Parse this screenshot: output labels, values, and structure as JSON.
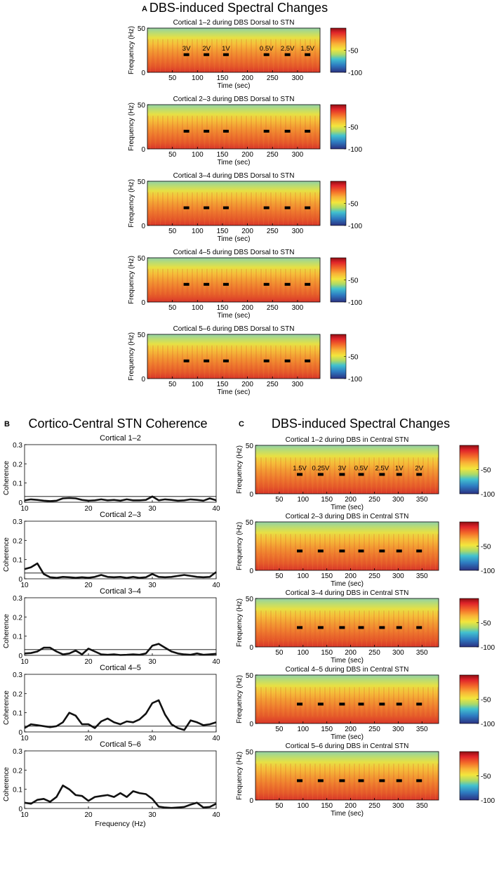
{
  "figure": {
    "panel_a": {
      "letter": "A",
      "title": "DBS-induced Spectral Changes",
      "colorbar_ticks": [
        "-50",
        "-100"
      ],
      "colorbar_colors": [
        "#b8161b",
        "#d82427",
        "#ef5424",
        "#f5892c",
        "#f7b733",
        "#f4e43a",
        "#c8e15a",
        "#6fcf9b",
        "#35b6d9",
        "#2a83c8",
        "#2f4fa8",
        "#2a3585"
      ],
      "ylabel": "Frequency (Hz)",
      "xlabel": "Time (sec)",
      "ytick_labels": [
        "50",
        "0"
      ],
      "xticks": [
        50,
        100,
        150,
        200,
        250,
        300
      ],
      "xlim": [
        0,
        345
      ],
      "ylim": [
        0,
        50
      ],
      "marker_times": [
        78,
        118,
        157,
        238,
        280,
        320
      ],
      "marker_freq": 20,
      "voltage_labels": [
        "3V",
        "2V",
        "1V",
        "0.5V",
        "2.5V",
        "1.5V"
      ],
      "subplots": [
        {
          "title": "Cortical 1–2 during DBS Dorsal to STN",
          "show_labels": true
        },
        {
          "title": "Cortical 2–3 during DBS Dorsal to STN",
          "show_labels": false
        },
        {
          "title": "Cortical 3–4 during DBS Dorsal to STN",
          "show_labels": false
        },
        {
          "title": "Cortical 4–5 during DBS Dorsal to STN",
          "show_labels": false
        },
        {
          "title": "Cortical 5–6 during DBS Dorsal to STN",
          "show_labels": false
        }
      ]
    },
    "panel_b": {
      "letter": "B",
      "title": "Cortico-Central STN Coherence",
      "ylabel": "Coherence",
      "xlabel": "Frequency (Hz)",
      "xticks": [
        10,
        20,
        30,
        40
      ],
      "yticks": [
        0,
        0.1,
        0.2,
        0.3
      ],
      "ytick_labels": [
        "0",
        "0.1",
        "0.2",
        "0.3"
      ],
      "xlim": [
        10,
        40
      ],
      "ylim": [
        0,
        0.3
      ],
      "threshold": 0.03
    },
    "panel_c": {
      "letter": "C",
      "title": "DBS-induced Spectral Changes",
      "colorbar_ticks": [
        "-50",
        "-100"
      ],
      "ylabel": "Frequency (Hz)",
      "xlabel": "Time (sec)",
      "ytick_labels": [
        "50",
        "0"
      ],
      "xticks": [
        50,
        100,
        150,
        200,
        250,
        300,
        350
      ],
      "xlim": [
        0,
        385
      ],
      "ylim": [
        0,
        50
      ],
      "marker_times": [
        93,
        137,
        182,
        222,
        266,
        302,
        344
      ],
      "marker_freq": 20,
      "voltage_labels": [
        "1.5V",
        "0.25V",
        "3V",
        "0.5V",
        "2.5V",
        "1V",
        "2V"
      ],
      "subplots": [
        {
          "title": "Cortical 1–2 during DBS in Central STN",
          "show_labels": true
        },
        {
          "title": "Cortical 2–3 during DBS in Central STN",
          "show_labels": false
        },
        {
          "title": "Cortical 3–4 during DBS in Central STN",
          "show_labels": false
        },
        {
          "title": "Cortical 4–5 during DBS in Central STN",
          "show_labels": false
        },
        {
          "title": "Cortical 5–6 during DBS in Central STN",
          "show_labels": false
        }
      ]
    }
  },
  "chart_data": [
    {
      "type": "line",
      "title": "Cortical 1–2",
      "xlabel": "",
      "ylabel": "Coherence",
      "xlim": [
        10,
        40
      ],
      "ylim": [
        0,
        0.3
      ],
      "x": [
        10,
        11,
        12,
        13,
        14,
        15,
        16,
        17,
        18,
        19,
        20,
        21,
        22,
        23,
        24,
        25,
        26,
        27,
        28,
        29,
        30,
        31,
        32,
        33,
        34,
        35,
        36,
        37,
        38,
        39,
        40
      ],
      "series": [
        {
          "name": "coherence",
          "values": [
            0.01,
            0.015,
            0.012,
            0.008,
            0.006,
            0.008,
            0.02,
            0.022,
            0.02,
            0.012,
            0.008,
            0.01,
            0.015,
            0.01,
            0.012,
            0.008,
            0.015,
            0.01,
            0.01,
            0.012,
            0.03,
            0.01,
            0.015,
            0.012,
            0.008,
            0.01,
            0.015,
            0.012,
            0.008,
            0.02,
            0.01
          ]
        }
      ],
      "threshold": 0.03
    },
    {
      "type": "line",
      "title": "Cortical 2–3",
      "xlabel": "",
      "ylabel": "Coherence",
      "xlim": [
        10,
        40
      ],
      "ylim": [
        0,
        0.3
      ],
      "x": [
        10,
        11,
        12,
        13,
        14,
        15,
        16,
        17,
        18,
        19,
        20,
        21,
        22,
        23,
        24,
        25,
        26,
        27,
        28,
        29,
        30,
        31,
        32,
        33,
        34,
        35,
        36,
        37,
        38,
        39,
        40
      ],
      "series": [
        {
          "name": "coherence",
          "values": [
            0.05,
            0.06,
            0.08,
            0.025,
            0.008,
            0.005,
            0.01,
            0.008,
            0.005,
            0.008,
            0.005,
            0.01,
            0.02,
            0.01,
            0.008,
            0.01,
            0.005,
            0.01,
            0.005,
            0.008,
            0.025,
            0.01,
            0.008,
            0.01,
            0.015,
            0.02,
            0.015,
            0.01,
            0.008,
            0.01,
            0.035
          ]
        }
      ],
      "threshold": 0.03
    },
    {
      "type": "line",
      "title": "Cortical 3–4",
      "xlabel": "",
      "ylabel": "Coherence",
      "xlim": [
        10,
        40
      ],
      "ylim": [
        0,
        0.3
      ],
      "x": [
        10,
        11,
        12,
        13,
        14,
        15,
        16,
        17,
        18,
        19,
        20,
        21,
        22,
        23,
        24,
        25,
        26,
        27,
        28,
        29,
        30,
        31,
        32,
        33,
        34,
        35,
        36,
        37,
        38,
        39,
        40
      ],
      "series": [
        {
          "name": "coherence",
          "values": [
            0.01,
            0.012,
            0.02,
            0.04,
            0.04,
            0.02,
            0.005,
            0.01,
            0.025,
            0.005,
            0.035,
            0.02,
            0.005,
            0.003,
            0.005,
            0.002,
            0.003,
            0.005,
            0.003,
            0.01,
            0.05,
            0.06,
            0.04,
            0.02,
            0.01,
            0.005,
            0.003,
            0.01,
            0.003,
            0.005,
            0.008
          ]
        }
      ],
      "threshold": 0.03
    },
    {
      "type": "line",
      "title": "Cortical 4–5",
      "xlabel": "",
      "ylabel": "Coherence",
      "xlim": [
        10,
        40
      ],
      "ylim": [
        0,
        0.3
      ],
      "x": [
        10,
        11,
        12,
        13,
        14,
        15,
        16,
        17,
        18,
        19,
        20,
        21,
        22,
        23,
        24,
        25,
        26,
        27,
        28,
        29,
        30,
        31,
        32,
        33,
        34,
        35,
        36,
        37,
        38,
        39,
        40
      ],
      "series": [
        {
          "name": "coherence",
          "values": [
            0.02,
            0.04,
            0.035,
            0.03,
            0.025,
            0.03,
            0.05,
            0.1,
            0.085,
            0.04,
            0.04,
            0.02,
            0.055,
            0.07,
            0.05,
            0.04,
            0.055,
            0.05,
            0.065,
            0.095,
            0.15,
            0.165,
            0.09,
            0.04,
            0.02,
            0.01,
            0.06,
            0.05,
            0.035,
            0.04,
            0.05
          ]
        }
      ],
      "threshold": 0.03
    },
    {
      "type": "line",
      "title": "Cortical 5–6",
      "xlabel": "Frequency (Hz)",
      "ylabel": "Coherence",
      "xlim": [
        10,
        40
      ],
      "ylim": [
        0,
        0.3
      ],
      "x": [
        10,
        11,
        12,
        13,
        14,
        15,
        16,
        17,
        18,
        19,
        20,
        21,
        22,
        23,
        24,
        25,
        26,
        27,
        28,
        29,
        30,
        31,
        32,
        33,
        34,
        35,
        36,
        37,
        38,
        39,
        40
      ],
      "series": [
        {
          "name": "coherence",
          "values": [
            0.03,
            0.025,
            0.045,
            0.05,
            0.035,
            0.06,
            0.12,
            0.1,
            0.07,
            0.065,
            0.04,
            0.06,
            0.065,
            0.07,
            0.06,
            0.08,
            0.06,
            0.09,
            0.08,
            0.075,
            0.05,
            0.01,
            0.005,
            0.003,
            0.005,
            0.008,
            0.02,
            0.03,
            0.005,
            0.008,
            0.025
          ]
        }
      ],
      "threshold": 0.03
    }
  ]
}
